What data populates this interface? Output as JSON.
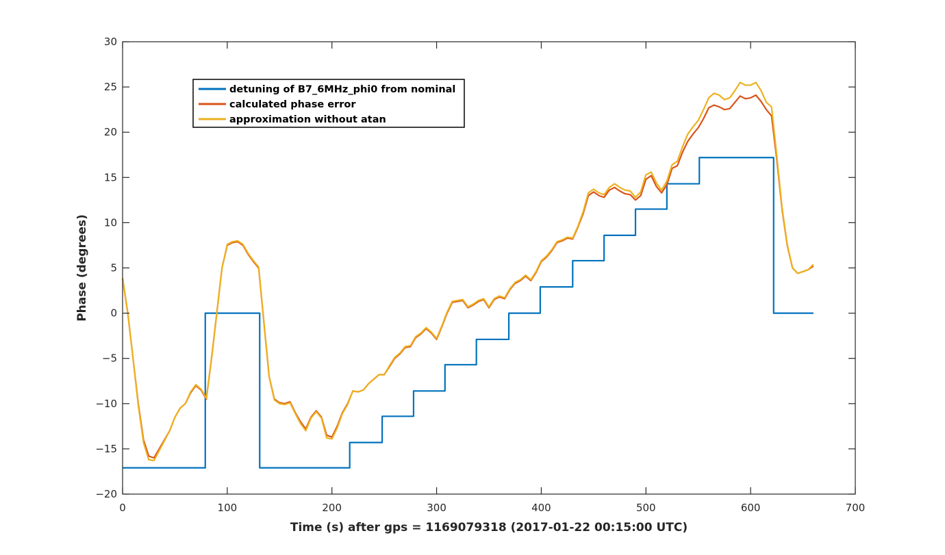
{
  "chart_data": {
    "type": "line",
    "title": "",
    "xlabel": "Time (s) after gps = 1169079318 (2017-01-22 00:15:00 UTC)",
    "ylabel": "Phase (degrees)",
    "xlim": [
      0,
      700
    ],
    "ylim": [
      -20,
      30
    ],
    "xticks": [
      0,
      100,
      200,
      300,
      400,
      500,
      600,
      700
    ],
    "yticks": [
      -20,
      -15,
      -10,
      -5,
      0,
      5,
      10,
      15,
      20,
      25,
      30
    ],
    "grid": false,
    "legend_position": "top-left",
    "series": [
      {
        "name": "detuning of B7_6MHz_phi0 from nominal",
        "color": "#0072BD",
        "step": true,
        "x": [
          0,
          79,
          131,
          217,
          248,
          278,
          308,
          338,
          369,
          399,
          430,
          460,
          490,
          520,
          551,
          622,
          660
        ],
        "y": [
          -17.1,
          0,
          -17.1,
          -14.3,
          -11.4,
          -8.6,
          -5.7,
          -2.9,
          0,
          2.9,
          5.8,
          8.6,
          11.5,
          14.3,
          17.2,
          0,
          0
        ]
      },
      {
        "name": "calculated phase error",
        "color": "#D95319",
        "x": [
          0,
          5,
          10,
          15,
          20,
          25,
          30,
          35,
          40,
          45,
          50,
          55,
          60,
          65,
          70,
          75,
          80,
          85,
          90,
          95,
          100,
          105,
          110,
          115,
          120,
          125,
          130,
          135,
          140,
          145,
          150,
          155,
          160,
          165,
          170,
          175,
          180,
          185,
          190,
          195,
          200,
          205,
          210,
          215,
          220,
          225,
          230,
          235,
          240,
          245,
          250,
          255,
          260,
          265,
          270,
          275,
          280,
          285,
          290,
          295,
          300,
          305,
          310,
          315,
          320,
          325,
          330,
          335,
          340,
          345,
          350,
          355,
          360,
          365,
          370,
          375,
          380,
          385,
          390,
          395,
          400,
          405,
          410,
          415,
          420,
          425,
          430,
          435,
          440,
          445,
          450,
          455,
          460,
          465,
          470,
          475,
          480,
          485,
          490,
          495,
          500,
          505,
          510,
          515,
          520,
          525,
          530,
          535,
          540,
          545,
          550,
          555,
          560,
          565,
          570,
          575,
          580,
          585,
          590,
          595,
          600,
          605,
          610,
          615,
          620,
          625,
          630,
          635,
          640,
          645,
          650,
          655,
          660
        ],
        "y": [
          3.8,
          0,
          -5,
          -10,
          -14,
          -15.8,
          -16,
          -15,
          -14,
          -13,
          -11.5,
          -10.5,
          -10,
          -8.8,
          -8,
          -8.5,
          -9.5,
          -5,
          0,
          5,
          7.5,
          7.8,
          7.9,
          7.5,
          6.5,
          5.7,
          5,
          -1,
          -7,
          -9.5,
          -9.9,
          -10,
          -9.8,
          -11,
          -12,
          -12.8,
          -11.5,
          -10.8,
          -11.5,
          -13.5,
          -13.7,
          -12.5,
          -11,
          -10,
          -8.6,
          -8.7,
          -8.5,
          -7.8,
          -7.3,
          -6.8,
          -6.8,
          -5.9,
          -5.0,
          -4.5,
          -3.8,
          -3.7,
          -2.7,
          -2.3,
          -1.7,
          -2.2,
          -2.9,
          -1.5,
          0,
          1.2,
          1.3,
          1.4,
          0.6,
          0.9,
          1.3,
          1.5,
          0.6,
          1.5,
          1.8,
          1.6,
          2.6,
          3.3,
          3.6,
          4.1,
          3.6,
          4.5,
          5.7,
          6.2,
          6.9,
          7.8,
          8.0,
          8.3,
          8.2,
          9.5,
          11.0,
          13.0,
          13.4,
          13.0,
          12.8,
          13.6,
          13.9,
          13.5,
          13.2,
          13.1,
          12.5,
          13.0,
          14.8,
          15.2,
          14.0,
          13.3,
          14.2,
          16.0,
          16.3,
          17.8,
          19.0,
          19.8,
          20.5,
          21.5,
          22.7,
          23.0,
          22.8,
          22.5,
          22.6,
          23.3,
          24.0,
          23.7,
          23.8,
          24.1,
          23.4,
          22.5,
          21.8,
          17.0,
          11.5,
          7.5,
          5.0,
          4.4,
          4.6,
          4.8,
          5.2
        ]
      },
      {
        "name": "approximation without atan",
        "color": "#EDB120",
        "x": [
          0,
          5,
          10,
          15,
          20,
          25,
          30,
          35,
          40,
          45,
          50,
          55,
          60,
          65,
          70,
          75,
          80,
          85,
          90,
          95,
          100,
          105,
          110,
          115,
          120,
          125,
          130,
          135,
          140,
          145,
          150,
          155,
          160,
          165,
          170,
          175,
          180,
          185,
          190,
          195,
          200,
          205,
          210,
          215,
          220,
          225,
          230,
          235,
          240,
          245,
          250,
          255,
          260,
          265,
          270,
          275,
          280,
          285,
          290,
          295,
          300,
          305,
          310,
          315,
          320,
          325,
          330,
          335,
          340,
          345,
          350,
          355,
          360,
          365,
          370,
          375,
          380,
          385,
          390,
          395,
          400,
          405,
          410,
          415,
          420,
          425,
          430,
          435,
          440,
          445,
          450,
          455,
          460,
          465,
          470,
          475,
          480,
          485,
          490,
          495,
          500,
          505,
          510,
          515,
          520,
          525,
          530,
          535,
          540,
          545,
          550,
          555,
          560,
          565,
          570,
          575,
          580,
          585,
          590,
          595,
          600,
          605,
          610,
          615,
          620,
          625,
          630,
          635,
          640,
          645,
          650,
          655,
          660
        ],
        "y": [
          3.9,
          0,
          -5,
          -10.2,
          -14.3,
          -16.2,
          -16.3,
          -15.2,
          -14.1,
          -13,
          -11.5,
          -10.5,
          -10,
          -8.7,
          -7.9,
          -8.4,
          -9.4,
          -5,
          0,
          5,
          7.6,
          7.9,
          8.0,
          7.6,
          6.6,
          5.8,
          5.1,
          -1,
          -7,
          -9.6,
          -10,
          -10.1,
          -9.9,
          -11.1,
          -12.2,
          -13,
          -11.6,
          -10.9,
          -11.6,
          -13.8,
          -13.9,
          -12.7,
          -11.1,
          -10.1,
          -8.6,
          -8.7,
          -8.5,
          -7.8,
          -7.3,
          -6.8,
          -6.8,
          -5.8,
          -4.9,
          -4.4,
          -3.7,
          -3.6,
          -2.6,
          -2.2,
          -1.6,
          -2.1,
          -2.8,
          -1.4,
          0.1,
          1.3,
          1.4,
          1.5,
          0.7,
          1.0,
          1.4,
          1.6,
          0.7,
          1.6,
          1.9,
          1.7,
          2.7,
          3.4,
          3.7,
          4.2,
          3.7,
          4.6,
          5.8,
          6.3,
          7.0,
          7.9,
          8.1,
          8.4,
          8.3,
          9.6,
          11.2,
          13.3,
          13.7,
          13.3,
          13.1,
          13.9,
          14.3,
          13.9,
          13.6,
          13.5,
          12.8,
          13.4,
          15.3,
          15.6,
          14.4,
          13.6,
          14.6,
          16.4,
          16.8,
          18.4,
          19.8,
          20.6,
          21.3,
          22.5,
          23.8,
          24.3,
          24.1,
          23.6,
          23.8,
          24.6,
          25.5,
          25.2,
          25.2,
          25.5,
          24.6,
          23.3,
          22.8,
          17.4,
          11.7,
          7.6,
          5.0,
          4.4,
          4.6,
          4.8,
          5.4
        ]
      }
    ]
  }
}
